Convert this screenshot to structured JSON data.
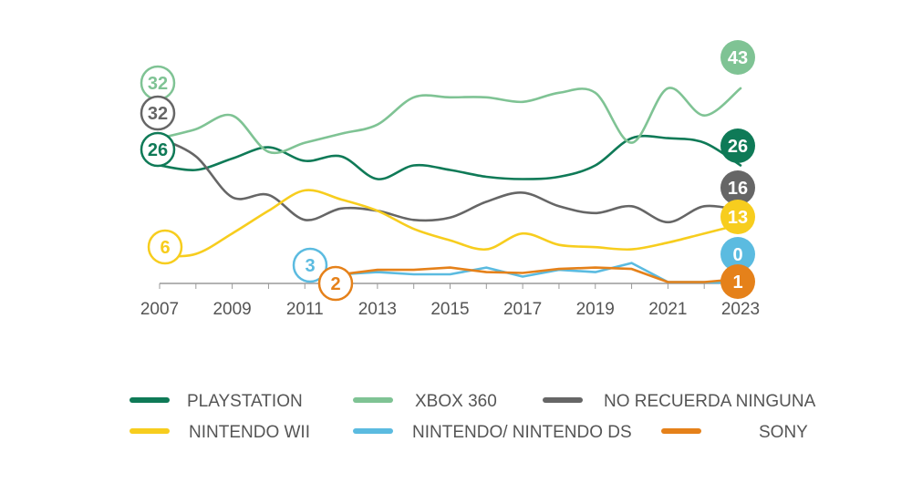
{
  "chart_data": {
    "type": "line",
    "title": "",
    "xlabel": "",
    "ylabel": "",
    "x_ticks": [
      2007,
      2009,
      2011,
      2013,
      2015,
      2017,
      2019,
      2021,
      2023
    ],
    "xlim": [
      2007,
      2023
    ],
    "ylim": [
      0,
      50
    ],
    "grid": false,
    "legend_position": "bottom",
    "series": [
      {
        "name": "PLAYSTATION",
        "color": "#0f7a57",
        "start_label": "26",
        "end_label": "26",
        "points": [
          [
            2007,
            26
          ],
          [
            2008,
            25
          ],
          [
            2009,
            27.5
          ],
          [
            2010,
            30
          ],
          [
            2011,
            27
          ],
          [
            2012,
            28
          ],
          [
            2013,
            23
          ],
          [
            2014,
            26
          ],
          [
            2015,
            25
          ],
          [
            2016,
            23.5
          ],
          [
            2017,
            23
          ],
          [
            2018,
            23.5
          ],
          [
            2019,
            26
          ],
          [
            2020,
            32
          ],
          [
            2021,
            32
          ],
          [
            2022,
            31
          ],
          [
            2023,
            26
          ]
        ]
      },
      {
        "name": "XBOX 360",
        "color": "#7fc394",
        "start_label": "32",
        "end_label": "43",
        "points": [
          [
            2007,
            32
          ],
          [
            2008,
            34
          ],
          [
            2009,
            37
          ],
          [
            2010,
            29
          ],
          [
            2011,
            31
          ],
          [
            2012,
            33
          ],
          [
            2013,
            35
          ],
          [
            2014,
            41
          ],
          [
            2015,
            41
          ],
          [
            2016,
            41
          ],
          [
            2017,
            40
          ],
          [
            2018,
            42
          ],
          [
            2019,
            42
          ],
          [
            2020,
            31
          ],
          [
            2021,
            43
          ],
          [
            2022,
            37
          ],
          [
            2023,
            43
          ]
        ]
      },
      {
        "name": "NO RECUERDA NINGUNA",
        "color": "#666666",
        "start_label": "32",
        "end_label": "16",
        "points": [
          [
            2007,
            32
          ],
          [
            2008,
            28
          ],
          [
            2009,
            19
          ],
          [
            2010,
            19.5
          ],
          [
            2011,
            14
          ],
          [
            2012,
            16.5
          ],
          [
            2013,
            16
          ],
          [
            2014,
            14
          ],
          [
            2015,
            14.5
          ],
          [
            2016,
            18
          ],
          [
            2017,
            20
          ],
          [
            2018,
            17
          ],
          [
            2019,
            15.5
          ],
          [
            2020,
            17
          ],
          [
            2021,
            13.5
          ],
          [
            2022,
            17
          ],
          [
            2023,
            16
          ]
        ]
      },
      {
        "name": "NINTENDO WII",
        "color": "#f7cd1e",
        "start_label": "6",
        "end_label": "13",
        "points": [
          [
            2007,
            6
          ],
          [
            2008,
            6.5
          ],
          [
            2009,
            11
          ],
          [
            2010,
            16
          ],
          [
            2011,
            20.5
          ],
          [
            2012,
            18.5
          ],
          [
            2013,
            16
          ],
          [
            2014,
            12
          ],
          [
            2015,
            9.5
          ],
          [
            2016,
            7.5
          ],
          [
            2017,
            11
          ],
          [
            2018,
            8.5
          ],
          [
            2019,
            8
          ],
          [
            2020,
            7.5
          ],
          [
            2021,
            9
          ],
          [
            2022,
            11
          ],
          [
            2023,
            13
          ]
        ]
      },
      {
        "name": "NINTENDO/ NINTENDO DS",
        "color": "#5bbbe0",
        "start_label": "3",
        "end_label": "0",
        "points": [
          [
            2011,
            3
          ],
          [
            2012,
            2
          ],
          [
            2013,
            2.5
          ],
          [
            2014,
            2
          ],
          [
            2015,
            2
          ],
          [
            2016,
            3.5
          ],
          [
            2017,
            1.5
          ],
          [
            2018,
            3
          ],
          [
            2019,
            2.5
          ],
          [
            2020,
            4.5
          ],
          [
            2021,
            0.3
          ],
          [
            2022,
            0.3
          ],
          [
            2023,
            0
          ]
        ]
      },
      {
        "name": "SONY",
        "color": "#e5811a",
        "start_label": "2",
        "end_label": "1",
        "points": [
          [
            2012,
            2
          ],
          [
            2013,
            3
          ],
          [
            2014,
            3
          ],
          [
            2015,
            3.5
          ],
          [
            2016,
            2.5
          ],
          [
            2017,
            2.3
          ],
          [
            2018,
            3.2
          ],
          [
            2019,
            3.5
          ],
          [
            2020,
            3.2
          ],
          [
            2021,
            0.3
          ],
          [
            2022,
            0.3
          ],
          [
            2023,
            1
          ]
        ]
      }
    ]
  }
}
